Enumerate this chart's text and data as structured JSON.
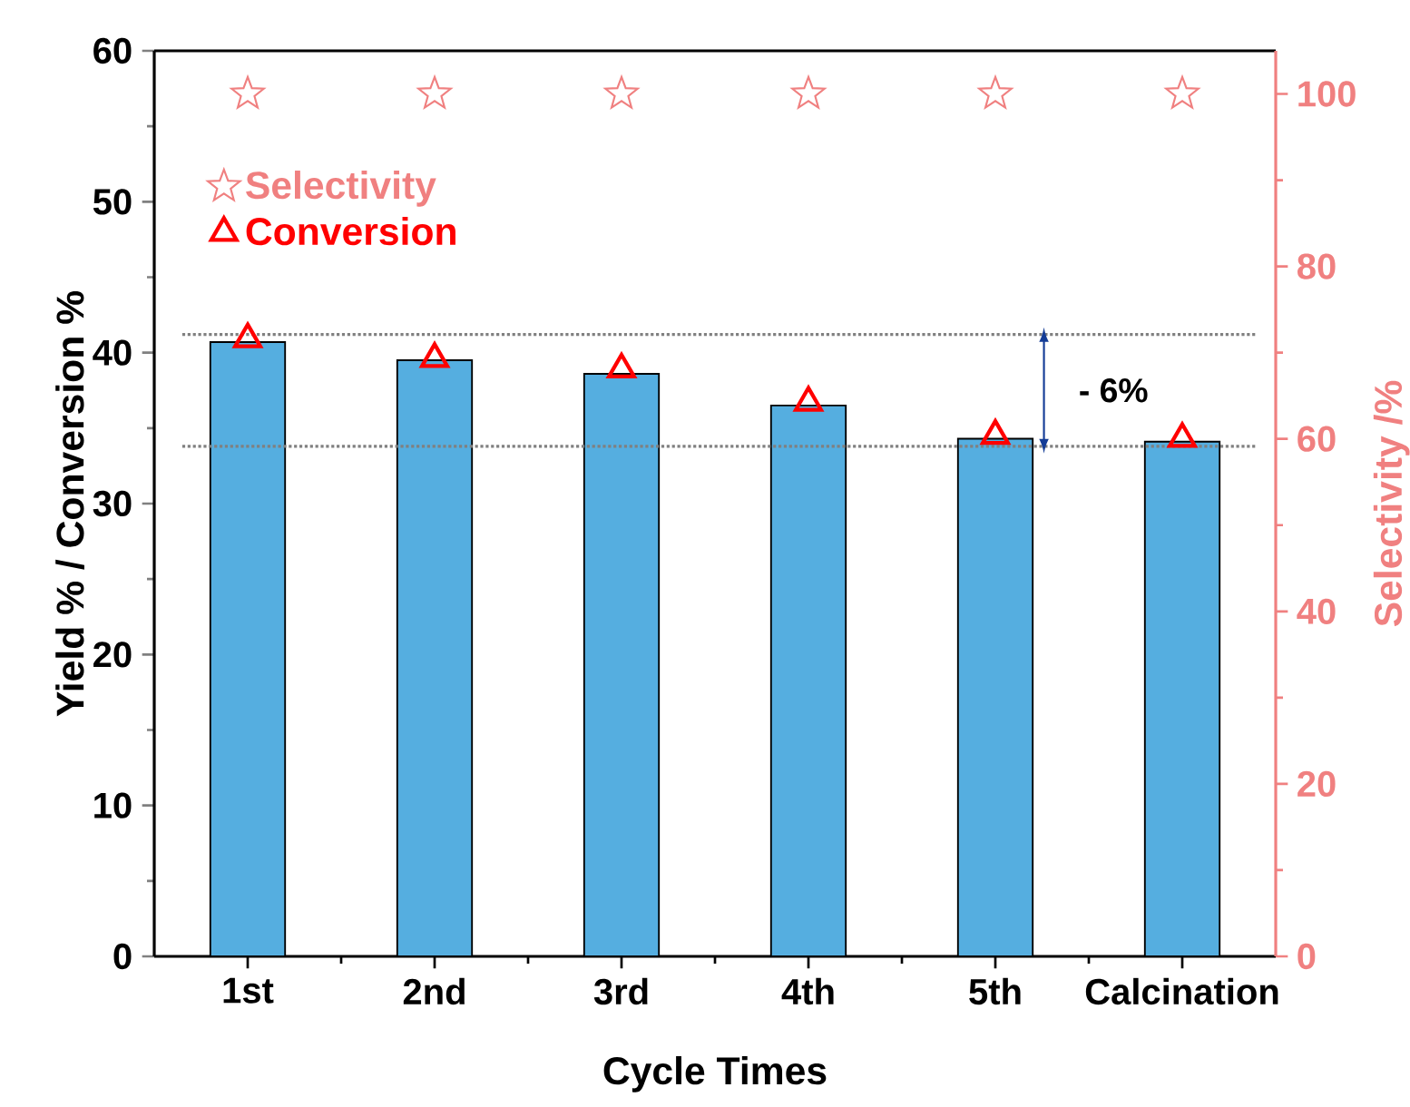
{
  "chart_data": {
    "type": "bar",
    "xlabel": "Cycle Times",
    "ylabel": "Yield % / Conversion %",
    "y2label": "Selectivity /%",
    "categories": [
      "1st",
      "2nd",
      "3rd",
      "4th",
      "5th",
      "Calcination"
    ],
    "series": [
      {
        "color": "#55aee0",
        "values": [
          40.7,
          39.5,
          38.6,
          36.5,
          34.3,
          34.1
        ]
      },
      {
        "type": "scatter",
        "name": "Selectivity",
        "color": "#f08080",
        "marker": "star",
        "axis": "y2",
        "values": [
          100,
          100,
          100,
          100,
          100,
          100
        ]
      },
      {
        "type": "scatter",
        "name": "Conversion",
        "color": "#ff0000",
        "marker": "triangle",
        "values": [
          40.9,
          39.6,
          38.9,
          36.7,
          34.5,
          34.3
        ]
      }
    ],
    "ylim": [
      0,
      60
    ],
    "yticks": [
      0,
      10,
      20,
      30,
      40,
      50,
      60
    ],
    "y2lim": [
      0,
      105
    ],
    "y2ticks": [
      0,
      20,
      40,
      60,
      80,
      100
    ],
    "ref_lines": [
      {
        "axis": "y",
        "value": 41.2,
        "color": "#808080",
        "line_style": "dotted"
      },
      {
        "axis": "y",
        "value": 33.8,
        "color": "#808080",
        "line_style": "dotted"
      }
    ],
    "annotations": [
      "- 6%"
    ],
    "legend": "top left",
    "grid": false
  }
}
